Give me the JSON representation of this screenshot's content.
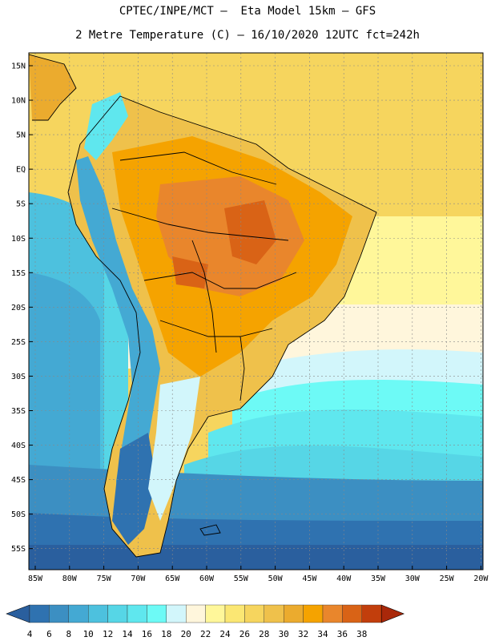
{
  "header": {
    "line1": "CPTEC/INPE/MCT –  Eta Model 15km – GFS",
    "line2": "2 Metre Temperature (C) – 16/10/2020 12UTC fct=242h"
  },
  "map": {
    "lat_labels": [
      "15N",
      "10N",
      "5N",
      "EQ",
      "5S",
      "10S",
      "15S",
      "20S",
      "25S",
      "30S",
      "35S",
      "40S",
      "45S",
      "50S",
      "55S"
    ],
    "lon_labels": [
      "85W",
      "80W",
      "75W",
      "70W",
      "65W",
      "60W",
      "55W",
      "50W",
      "45W",
      "40W",
      "35W",
      "30W",
      "25W",
      "20W"
    ]
  },
  "colorbar": {
    "labels": [
      "4",
      "6",
      "8",
      "10",
      "12",
      "14",
      "16",
      "18",
      "20",
      "22",
      "24",
      "26",
      "28",
      "30",
      "32",
      "34",
      "36",
      "38"
    ],
    "colors": [
      "#2a5f9e",
      "#2f72b0",
      "#3c8fc2",
      "#44a9d3",
      "#4dc1de",
      "#56d6e6",
      "#5fe7ee",
      "#6dfaf6",
      "#d2f6fb",
      "#fff6dc",
      "#fff79a",
      "#fbe773",
      "#f6d55e",
      "#efc14b",
      "#ebab2e",
      "#f5a300",
      "#e9862c",
      "#d96316",
      "#c23e0c",
      "#a9280a"
    ],
    "left_arrow_color": "#2a5f9e",
    "right_arrow_color": "#a9280a"
  }
}
